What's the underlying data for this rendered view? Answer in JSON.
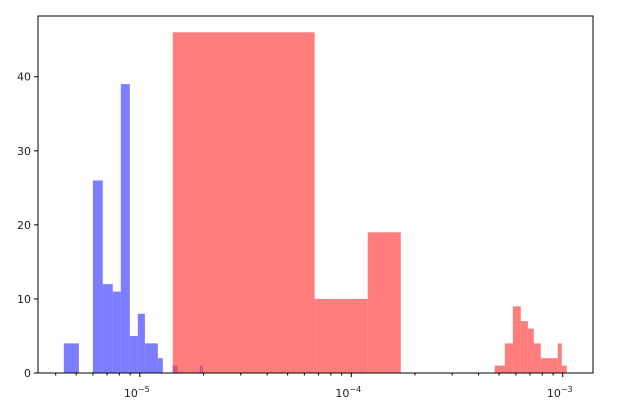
{
  "chart_data": {
    "type": "histogram",
    "title": "",
    "xlabel": "",
    "ylabel": "",
    "xscale": "log",
    "xlim": [
      3.3e-06,
      0.00139
    ],
    "ylim": [
      0,
      48.2
    ],
    "grid": false,
    "yticks": [
      0,
      10,
      20,
      30,
      40
    ],
    "xticks": [
      {
        "value": 1e-05,
        "base": "10",
        "exp": "−5"
      },
      {
        "value": 0.0001,
        "base": "10",
        "exp": "−4"
      },
      {
        "value": 0.001,
        "base": "10",
        "exp": "−3"
      }
    ],
    "series": [
      {
        "color": "#4646ff",
        "alpha": 0.7,
        "bins": [
          [
            4.37e-06,
            5.15e-06,
            4
          ],
          [
            6e-06,
            6.68e-06,
            26
          ],
          [
            6.68e-06,
            7.45e-06,
            12
          ],
          [
            7.45e-06,
            8.13e-06,
            11
          ],
          [
            8.13e-06,
            8.97e-06,
            39
          ],
          [
            8.97e-06,
            9.78e-06,
            5
          ],
          [
            9.78e-06,
            1.057e-05,
            8
          ],
          [
            1.057e-05,
            1.217e-05,
            4
          ],
          [
            1.217e-05,
            1.285e-05,
            2
          ],
          [
            1.43e-05,
            1.51e-05,
            1
          ],
          [
            1.92e-05,
            1.99e-05,
            1
          ]
        ]
      },
      {
        "color": "#ff4646",
        "alpha": 0.7,
        "bins": [
          [
            1.432e-05,
            6.71e-05,
            46
          ],
          [
            6.71e-05,
            0.0001196,
            10
          ],
          [
            0.0001196,
            0.0001714,
            19
          ],
          [
            0.000476,
            0.000532,
            1
          ],
          [
            0.000532,
            0.000581,
            4
          ],
          [
            0.000581,
            0.000633,
            9
          ],
          [
            0.000633,
            0.000684,
            7
          ],
          [
            0.000684,
            0.00073,
            6
          ],
          [
            0.00073,
            0.000787,
            4
          ],
          [
            0.000787,
            0.000947,
            2
          ],
          [
            0.000947,
            0.000989,
            4
          ],
          [
            0.000989,
            0.001044,
            1
          ]
        ]
      }
    ]
  }
}
